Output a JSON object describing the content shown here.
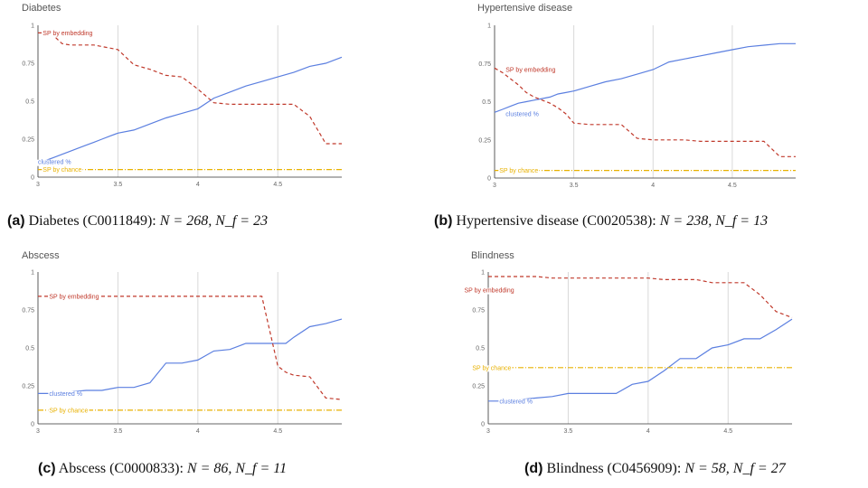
{
  "colors": {
    "clustered": "#5b7fe0",
    "embedding": "#c0392b",
    "chance": "#e8b100",
    "grid": "#d8d8d8",
    "axis": "#333333"
  },
  "chart_data": [
    {
      "type": "line",
      "title": "Diabetes",
      "caption": {
        "letter": "(a)",
        "text": "Diabetes (C0011849): ",
        "math": "N = 268, N_f = 23"
      },
      "xlim": [
        3,
        4.9
      ],
      "ylim": [
        0,
        1
      ],
      "xticks": [
        "3",
        "3.5",
        "4",
        "4.5"
      ],
      "xtick_values": [
        3,
        3.5,
        4,
        4.5
      ],
      "yticks": [
        "0",
        "0.25",
        "0.5",
        "0.75",
        "1"
      ],
      "ytick_values": [
        0,
        0.25,
        0.5,
        0.75,
        1
      ],
      "grid": true,
      "x": [
        3.0,
        3.05,
        3.1,
        3.15,
        3.2,
        3.25,
        3.3,
        3.35,
        3.4,
        3.45,
        3.5,
        3.6,
        3.7,
        3.8,
        3.9,
        4.0,
        4.1,
        4.2,
        4.3,
        4.4,
        4.5,
        4.6,
        4.7,
        4.8,
        4.9
      ],
      "series": [
        {
          "name": "clustered %",
          "key": "clustered",
          "dash": "",
          "label_at": [
            3.0,
            0.1
          ],
          "values": [
            0.1,
            0.11,
            0.13,
            0.15,
            0.17,
            0.19,
            0.21,
            0.23,
            0.25,
            0.27,
            0.29,
            0.31,
            0.35,
            0.39,
            0.42,
            0.45,
            0.52,
            0.56,
            0.6,
            0.63,
            0.66,
            0.69,
            0.73,
            0.75,
            0.79
          ]
        },
        {
          "name": "SP by embedding",
          "key": "embedding",
          "dash": "4,3",
          "label_at": [
            3.03,
            0.95
          ],
          "values": [
            0.95,
            0.95,
            0.93,
            0.88,
            0.87,
            0.87,
            0.87,
            0.87,
            0.86,
            0.85,
            0.84,
            0.74,
            0.71,
            0.67,
            0.66,
            0.58,
            0.49,
            0.48,
            0.48,
            0.48,
            0.48,
            0.48,
            0.4,
            0.22,
            0.22
          ]
        },
        {
          "name": "SP by chance",
          "key": "chance",
          "dash": "6,2,1,2",
          "label_at": [
            3.03,
            0.05
          ],
          "values": [
            0.05,
            0.05,
            0.05,
            0.05,
            0.05,
            0.05,
            0.05,
            0.05,
            0.05,
            0.05,
            0.05,
            0.05,
            0.05,
            0.05,
            0.05,
            0.05,
            0.05,
            0.05,
            0.05,
            0.05,
            0.05,
            0.05,
            0.05,
            0.05,
            0.05
          ]
        }
      ]
    },
    {
      "type": "line",
      "title": "Hypertensive disease",
      "caption": {
        "letter": "(b)",
        "text": "Hypertensive disease (C0020538): ",
        "math": "N = 238, N_f = 13"
      },
      "xlim": [
        3,
        4.9
      ],
      "ylim": [
        0,
        1
      ],
      "xticks": [
        "3",
        "3.5",
        "4",
        "4.5"
      ],
      "xtick_values": [
        3,
        3.5,
        4,
        4.5
      ],
      "yticks": [
        "0",
        "0.25",
        "0.5",
        "0.75",
        "1"
      ],
      "ytick_values": [
        0,
        0.25,
        0.5,
        0.75,
        1
      ],
      "grid": true,
      "x": [
        3.0,
        3.05,
        3.1,
        3.15,
        3.2,
        3.25,
        3.3,
        3.35,
        3.4,
        3.45,
        3.5,
        3.6,
        3.7,
        3.8,
        3.9,
        4.0,
        4.1,
        4.2,
        4.3,
        4.4,
        4.5,
        4.6,
        4.7,
        4.8,
        4.9
      ],
      "series": [
        {
          "name": "clustered %",
          "key": "clustered",
          "dash": "",
          "label_at": [
            3.07,
            0.42
          ],
          "values": [
            0.43,
            0.45,
            0.47,
            0.49,
            0.5,
            0.51,
            0.52,
            0.53,
            0.55,
            0.56,
            0.57,
            0.6,
            0.63,
            0.65,
            0.68,
            0.71,
            0.76,
            0.78,
            0.8,
            0.82,
            0.84,
            0.86,
            0.87,
            0.88,
            0.88
          ]
        },
        {
          "name": "SP by embedding",
          "key": "embedding",
          "dash": "4,3",
          "label_at": [
            3.07,
            0.71
          ],
          "values": [
            0.72,
            0.69,
            0.65,
            0.61,
            0.56,
            0.53,
            0.51,
            0.49,
            0.46,
            0.42,
            0.36,
            0.35,
            0.35,
            0.35,
            0.26,
            0.25,
            0.25,
            0.25,
            0.24,
            0.24,
            0.24,
            0.24,
            0.24,
            0.14,
            0.14
          ]
        },
        {
          "name": "SP by chance",
          "key": "chance",
          "dash": "6,2,1,2",
          "label_at": [
            3.03,
            0.05
          ],
          "values": [
            0.05,
            0.05,
            0.05,
            0.05,
            0.05,
            0.05,
            0.05,
            0.05,
            0.05,
            0.05,
            0.05,
            0.05,
            0.05,
            0.05,
            0.05,
            0.05,
            0.05,
            0.05,
            0.05,
            0.05,
            0.05,
            0.05,
            0.05,
            0.05,
            0.05
          ]
        }
      ]
    },
    {
      "type": "line",
      "title": "Abscess",
      "caption": {
        "letter": "(c)",
        "text": "Abscess (C0000833): ",
        "math": "N = 86, N_f = 11"
      },
      "xlim": [
        3,
        4.9
      ],
      "ylim": [
        0,
        1
      ],
      "xticks": [
        "3",
        "3.5",
        "4",
        "4.5"
      ],
      "xtick_values": [
        3,
        3.5,
        4,
        4.5
      ],
      "yticks": [
        "0",
        "0.25",
        "0.5",
        "0.75",
        "1"
      ],
      "ytick_values": [
        0,
        0.25,
        0.5,
        0.75,
        1
      ],
      "grid": true,
      "x": [
        3.0,
        3.1,
        3.2,
        3.3,
        3.4,
        3.5,
        3.6,
        3.7,
        3.8,
        3.9,
        4.0,
        4.1,
        4.2,
        4.3,
        4.4,
        4.5,
        4.55,
        4.6,
        4.7,
        4.8,
        4.9
      ],
      "series": [
        {
          "name": "clustered %",
          "key": "clustered",
          "dash": "",
          "label_at": [
            3.07,
            0.2
          ],
          "values": [
            0.2,
            0.2,
            0.21,
            0.22,
            0.22,
            0.24,
            0.24,
            0.27,
            0.4,
            0.4,
            0.42,
            0.48,
            0.49,
            0.53,
            0.53,
            0.53,
            0.53,
            0.57,
            0.64,
            0.66,
            0.69
          ]
        },
        {
          "name": "SP by embedding",
          "key": "embedding",
          "dash": "4,3",
          "label_at": [
            3.07,
            0.84
          ],
          "values": [
            0.84,
            0.84,
            0.84,
            0.84,
            0.84,
            0.84,
            0.84,
            0.84,
            0.84,
            0.84,
            0.84,
            0.84,
            0.84,
            0.84,
            0.84,
            0.38,
            0.34,
            0.32,
            0.31,
            0.17,
            0.16
          ]
        },
        {
          "name": "SP by chance",
          "key": "chance",
          "dash": "6,2,1,2",
          "label_at": [
            3.07,
            0.09
          ],
          "values": [
            0.09,
            0.09,
            0.09,
            0.09,
            0.09,
            0.09,
            0.09,
            0.09,
            0.09,
            0.09,
            0.09,
            0.09,
            0.09,
            0.09,
            0.09,
            0.09,
            0.09,
            0.09,
            0.09,
            0.09,
            0.09
          ]
        }
      ]
    },
    {
      "type": "line",
      "title": "Blindness",
      "caption": {
        "letter": "(d)",
        "text": "Blindness (C0456909): ",
        "math": "N = 58, N_f = 27"
      },
      "xlim": [
        3,
        4.9
      ],
      "ylim": [
        0,
        1
      ],
      "xticks": [
        "3",
        "3.5",
        "4",
        "4.5"
      ],
      "xtick_values": [
        3,
        3.5,
        4,
        4.5
      ],
      "yticks": [
        "0",
        "0.25",
        "0.5",
        "0.75",
        "1"
      ],
      "ytick_values": [
        0,
        0.25,
        0.5,
        0.75,
        1
      ],
      "grid": true,
      "x": [
        3.0,
        3.1,
        3.2,
        3.3,
        3.4,
        3.5,
        3.6,
        3.7,
        3.8,
        3.9,
        4.0,
        4.1,
        4.2,
        4.3,
        4.4,
        4.5,
        4.6,
        4.7,
        4.8,
        4.9
      ],
      "series": [
        {
          "name": "clustered %",
          "key": "clustered",
          "dash": "",
          "label_at": [
            3.07,
            0.15
          ],
          "values": [
            0.15,
            0.15,
            0.16,
            0.17,
            0.18,
            0.2,
            0.2,
            0.2,
            0.2,
            0.26,
            0.28,
            0.35,
            0.43,
            0.43,
            0.5,
            0.52,
            0.56,
            0.56,
            0.62,
            0.69
          ]
        },
        {
          "name": "SP by embedding",
          "key": "embedding",
          "dash": "4,3",
          "label_at": [
            2.85,
            0.88
          ],
          "values": [
            0.97,
            0.97,
            0.97,
            0.97,
            0.96,
            0.96,
            0.96,
            0.96,
            0.96,
            0.96,
            0.96,
            0.95,
            0.95,
            0.95,
            0.93,
            0.93,
            0.93,
            0.85,
            0.74,
            0.7
          ]
        },
        {
          "name": "SP by chance",
          "key": "chance",
          "dash": "6,2,1,2",
          "label_at": [
            2.9,
            0.37
          ],
          "values": [
            0.37,
            0.37,
            0.37,
            0.37,
            0.37,
            0.37,
            0.37,
            0.37,
            0.37,
            0.37,
            0.37,
            0.37,
            0.37,
            0.37,
            0.37,
            0.37,
            0.37,
            0.37,
            0.37,
            0.37
          ]
        }
      ]
    }
  ]
}
